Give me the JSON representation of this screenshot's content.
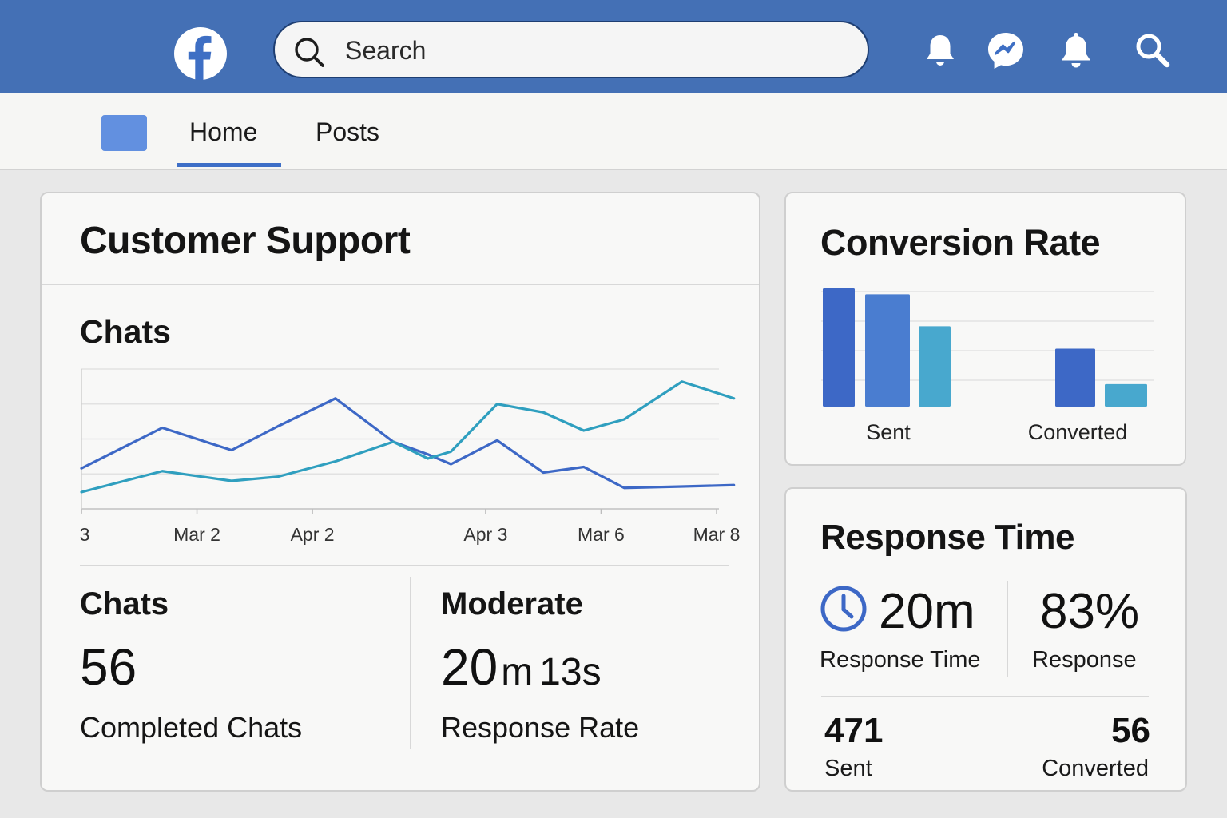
{
  "header": {
    "search_placeholder": "Search"
  },
  "nav": {
    "tabs": [
      {
        "label": "Home",
        "active": true
      },
      {
        "label": "Posts",
        "active": false
      }
    ]
  },
  "colors": {
    "brand_blue": "#4470b5",
    "series_blue": "#3d68c6",
    "series_teal": "#2f9fbf"
  },
  "support": {
    "title": "Customer Support",
    "chart_title": "Chats",
    "stats": {
      "left_heading": "Chats",
      "left_value": "56",
      "left_caption": "Completed Chats",
      "right_heading": "Moderate",
      "right_value_main": "20",
      "right_value_m": "m",
      "right_value_s": "13s",
      "right_caption": "Response Rate"
    }
  },
  "conversion": {
    "title": "Conversion Rate"
  },
  "response": {
    "title": "Response Time",
    "time_value": "20m",
    "time_caption": "Response Time",
    "rate_value": "83%",
    "rate_caption": "Response",
    "sent_value": "471",
    "sent_caption": "Sent",
    "converted_value": "56",
    "converted_caption": "Converted"
  },
  "chart_data": [
    {
      "type": "line",
      "title": "Chats",
      "x": [
        "3",
        "",
        "Mar 2",
        "",
        "Apr 2",
        "",
        "",
        "Apr 3",
        "",
        "Mar 6",
        "",
        "Mar 8"
      ],
      "x_tick_labels": [
        "3",
        "Mar 2",
        "Apr 2",
        "Apr 3",
        "Mar 6",
        "Mar 8"
      ],
      "ylim": [
        0,
        100
      ],
      "grid": true,
      "series": [
        {
          "color": "#3d68c6",
          "values": [
            [
              0,
              29
            ],
            [
              1.4,
              58
            ],
            [
              2.6,
              42
            ],
            [
              3.4,
              59
            ],
            [
              4.4,
              79
            ],
            [
              5.4,
              48
            ],
            [
              6.0,
              39
            ],
            [
              6.4,
              32
            ],
            [
              7.2,
              49
            ],
            [
              8.0,
              26
            ],
            [
              8.7,
              30
            ],
            [
              9.4,
              15
            ],
            [
              10.4,
              16
            ],
            [
              11.3,
              17
            ]
          ]
        },
        {
          "color": "#2f9fbf",
          "values": [
            [
              0,
              12
            ],
            [
              1.4,
              27
            ],
            [
              2.6,
              20
            ],
            [
              3.4,
              23
            ],
            [
              4.4,
              34
            ],
            [
              5.4,
              48
            ],
            [
              6.0,
              36
            ],
            [
              6.4,
              41
            ],
            [
              7.2,
              75
            ],
            [
              8.0,
              69
            ],
            [
              8.7,
              56
            ],
            [
              9.4,
              64
            ],
            [
              10.4,
              91
            ],
            [
              11.3,
              79
            ]
          ]
        }
      ]
    },
    {
      "type": "bar",
      "title": "Conversion Rate",
      "categories": [
        "Sent",
        "Converted"
      ],
      "ylim": [
        0,
        100
      ],
      "grid": true,
      "bars": [
        {
          "group": "Sent",
          "color": "#3d68c6",
          "value": 100
        },
        {
          "group": "Sent",
          "color": "#4a7dd0",
          "value": 95
        },
        {
          "group": "Sent",
          "color": "#48a8ce",
          "value": 68
        },
        {
          "group": "Converted",
          "color": "#3d68c6",
          "value": 49
        },
        {
          "group": "Converted",
          "color": "#48a8ce",
          "value": 19
        }
      ]
    }
  ]
}
